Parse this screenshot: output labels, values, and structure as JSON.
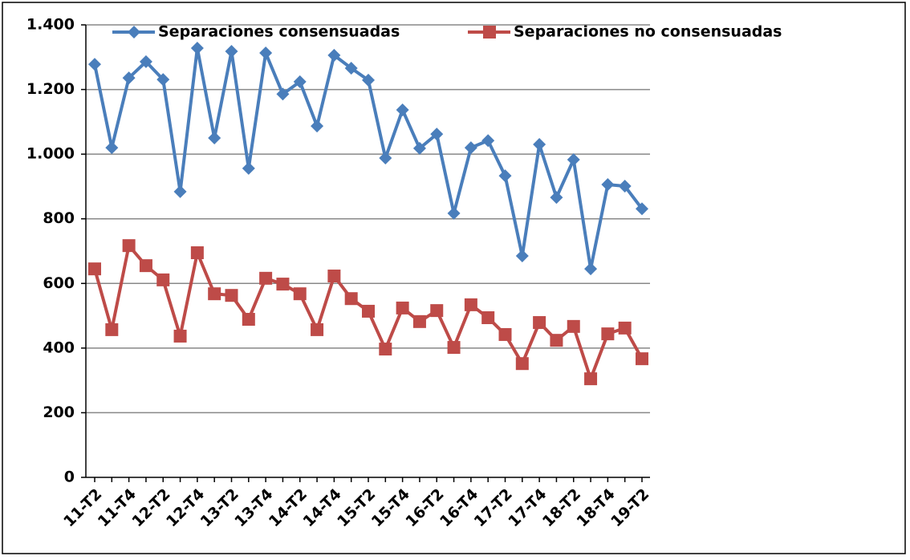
{
  "chart_data": {
    "type": "line",
    "categories": [
      "11-T2",
      null,
      "11-T4",
      null,
      "12-T2",
      null,
      "12-T4",
      null,
      "13-T2",
      null,
      "13-T4",
      null,
      "14-T2",
      null,
      "14-T4",
      null,
      "15-T2",
      null,
      "15-T4",
      null,
      "16-T2",
      null,
      "16-T4",
      null,
      "17-T2",
      null,
      "17-T4",
      null,
      "18-T2",
      null,
      "18-T4",
      null,
      "19-T2"
    ],
    "series": [
      {
        "name": "Separaciones consensuadas",
        "color": "#4a7ebb",
        "marker": "diamond",
        "values": [
          1278,
          1020,
          1236,
          1286,
          1231,
          884,
          1328,
          1050,
          1318,
          956,
          1313,
          1186,
          1224,
          1087,
          1306,
          1266,
          1229,
          988,
          1137,
          1018,
          1062,
          817,
          1020,
          1042,
          933,
          685,
          1030,
          866,
          983,
          645,
          906,
          901,
          831
        ]
      },
      {
        "name": "Separaciones no consensuadas",
        "color": "#be4b48",
        "marker": "square",
        "values": [
          645,
          457,
          717,
          655,
          611,
          437,
          695,
          568,
          563,
          489,
          616,
          598,
          568,
          457,
          623,
          553,
          514,
          397,
          524,
          482,
          516,
          402,
          534,
          494,
          442,
          352,
          479,
          424,
          467,
          305,
          444,
          462,
          367
        ]
      }
    ],
    "ylim": [
      0,
      1400
    ],
    "yticks": [
      0,
      200,
      400,
      600,
      800,
      {
        "value": 1000,
        "label": "1.000"
      },
      {
        "value": 1200,
        "label": "1.200"
      },
      {
        "value": 1400,
        "label": "1.400"
      }
    ],
    "grid": true,
    "legend": "top"
  }
}
